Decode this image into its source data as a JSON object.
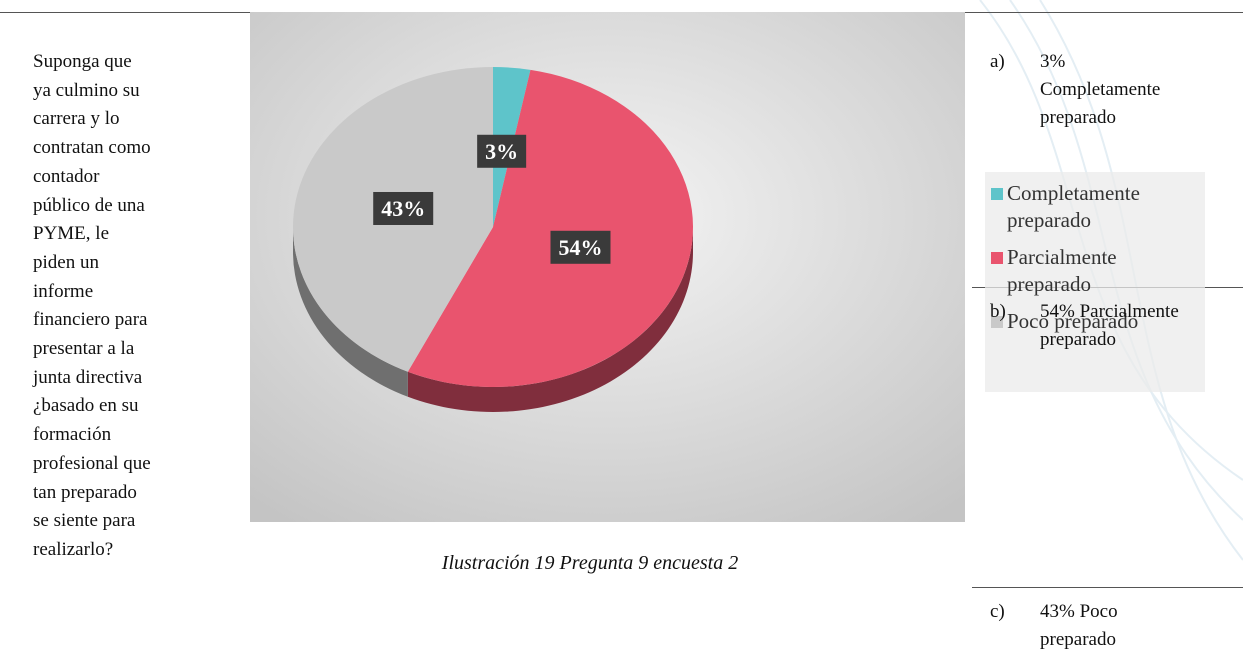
{
  "question": {
    "lines": [
      "Suponga que",
      "ya culmino su",
      "carrera y lo",
      "contratan como",
      "contador",
      "público de una",
      "PYME, le",
      "piden un",
      "informe",
      "financiero para",
      "presentar a la",
      "junta directiva",
      "¿basado en su",
      "formación",
      "profesional que",
      "tan preparado",
      "se siente para",
      "realizarlo?"
    ]
  },
  "chart_data": {
    "type": "pie",
    "categories": [
      "Completamente preparado",
      "Parcialmente preparado",
      "Poco preparado"
    ],
    "values": [
      3,
      54,
      43
    ],
    "value_labels": [
      "3%",
      "54%",
      "43%"
    ],
    "colors": [
      "#5ec4ca",
      "#e9546e",
      "#c9c9c9"
    ],
    "legend": "right"
  },
  "caption": "Ilustración 19 Pregunta 9 encuesta 2",
  "options": [
    {
      "letter": "a)",
      "text": "3% Completamente preparado"
    },
    {
      "letter": "b)",
      "text": "54% Parcialmente preparado"
    },
    {
      "letter": "c)",
      "text": "43% Poco preparado"
    }
  ]
}
